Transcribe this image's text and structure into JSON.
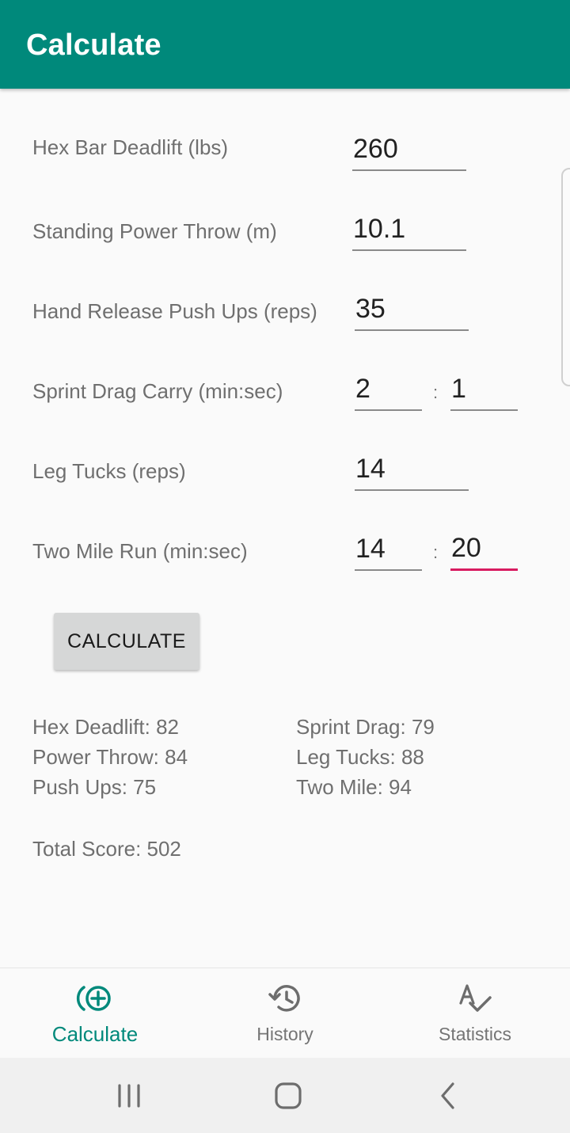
{
  "appbar": {
    "title": "Calculate"
  },
  "inputs": {
    "deadlift": {
      "label": "Hex Bar Deadlift (lbs)",
      "value": "260"
    },
    "power_throw": {
      "label": "Standing Power Throw (m)",
      "value": "10.1"
    },
    "push_ups": {
      "label": "Hand Release Push Ups (reps)",
      "value": "35"
    },
    "sprint_drag": {
      "label": "Sprint Drag Carry (min:sec)",
      "min": "2",
      "sec": "1",
      "separator": ":"
    },
    "leg_tucks": {
      "label": "Leg Tucks (reps)",
      "value": "14"
    },
    "two_mile": {
      "label": "Two Mile Run (min:sec)",
      "min": "14",
      "sec": "20",
      "separator": ":"
    }
  },
  "calculate_button": {
    "label": "CALCULATE"
  },
  "results": {
    "hex_deadlift": "Hex Deadlift: 82",
    "power_throw": "Power Throw: 84",
    "push_ups": "Push Ups: 75",
    "sprint_drag": "Sprint Drag: 79",
    "leg_tucks": "Leg Tucks: 88",
    "two_mile": "Two Mile: 94",
    "total": "Total Score: 502"
  },
  "bottom_nav": {
    "items": [
      {
        "label": "Calculate",
        "icon": "calculate-add-icon",
        "active": true
      },
      {
        "label": "History",
        "icon": "history-icon",
        "active": false
      },
      {
        "label": "Statistics",
        "icon": "spellcheck-icon",
        "active": false
      }
    ]
  },
  "colors": {
    "primary": "#00897B",
    "accent": "#D81B60"
  }
}
